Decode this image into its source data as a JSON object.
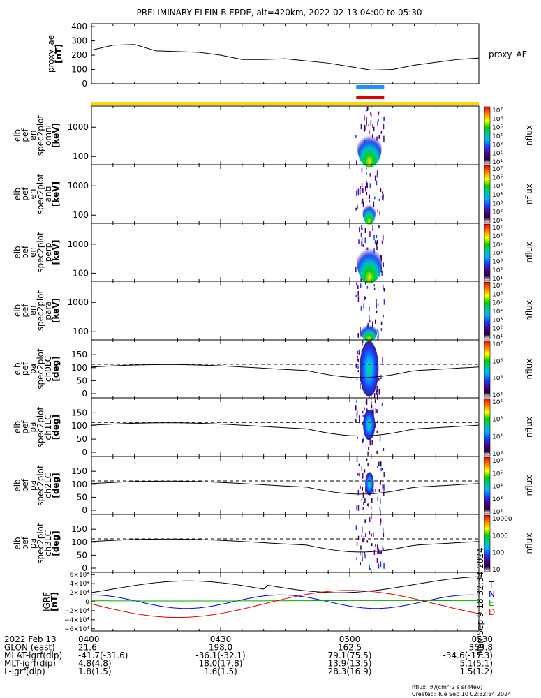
{
  "title": "PRELIMINARY ELFIN-B EPDE, alt=420km, 2022-02-13 04:00 to 05:30",
  "colors": {
    "bar_blue": "#1e90ff",
    "bar_red": "#e00000",
    "bar_yellow": "#ffd700",
    "bx": "#000000",
    "by": "#0000dd",
    "bz": "#00aa00",
    "bd": "#dd0000"
  },
  "chart_data": [
    {
      "type": "line",
      "panel": "proxy_ae",
      "ylabel_lines": [
        "proxy_ae",
        "[nT]"
      ],
      "legend": "proxy_AE",
      "yticks": [
        "400",
        "300",
        "200",
        "100",
        "0"
      ],
      "ylim": [
        0,
        420
      ],
      "x_minutes": [
        0,
        5,
        10,
        15,
        20,
        25,
        30,
        35,
        40,
        45,
        50,
        55,
        60,
        65,
        70,
        75,
        80,
        85,
        90
      ],
      "values": [
        235,
        270,
        275,
        230,
        225,
        220,
        200,
        170,
        170,
        175,
        160,
        145,
        120,
        95,
        100,
        130,
        150,
        170,
        180
      ]
    },
    {
      "type": "heatmap",
      "panel": "omni",
      "ylabel_lines": [
        "elb",
        "pef",
        "en",
        "spec2plot",
        "omni",
        "[keV]"
      ],
      "yticks": [
        "1000",
        "100"
      ],
      "cbar_label": "nflux",
      "cbar_ticks": [
        "10⁷",
        "10⁶",
        "10⁵",
        "10⁴",
        "10³",
        "10²",
        "10¹"
      ]
    },
    {
      "type": "heatmap",
      "panel": "anti",
      "ylabel_lines": [
        "elb",
        "pef",
        "en",
        "spec2plot",
        "anti",
        "[keV]"
      ],
      "yticks": [
        "1000",
        "100"
      ],
      "cbar_label": "nflux",
      "cbar_ticks": [
        "10⁷",
        "10⁶",
        "10⁵",
        "10⁴",
        "10³",
        "10²",
        "10¹"
      ]
    },
    {
      "type": "heatmap",
      "panel": "perp",
      "ylabel_lines": [
        "elb",
        "pef",
        "en",
        "spec2plot",
        "perp",
        "[keV]"
      ],
      "yticks": [
        "1000",
        "100"
      ],
      "cbar_label": "nflux",
      "cbar_ticks": [
        "10⁷",
        "10⁶",
        "10⁵",
        "10⁴",
        "10³",
        "10²",
        "10¹"
      ]
    },
    {
      "type": "heatmap",
      "panel": "para",
      "ylabel_lines": [
        "elb",
        "pef",
        "en",
        "spec2plot",
        "para",
        "[keV]"
      ],
      "yticks": [
        "1000",
        "100"
      ],
      "cbar_label": "nflux",
      "cbar_ticks": [
        "10⁷",
        "10⁶",
        "10⁵",
        "10⁴",
        "10³",
        "10²",
        "10¹"
      ]
    },
    {
      "type": "heatmap",
      "panel": "ch0LC",
      "ylabel_lines": [
        "elb",
        "pef",
        "pa",
        "spec2plot",
        "ch0LC",
        "[deg]"
      ],
      "yticks": [
        "150",
        "100",
        "50",
        "0"
      ],
      "cbar_label": "nflux",
      "cbar_ticks": [
        "10⁷",
        "10⁶",
        "10⁵",
        "10⁴"
      ]
    },
    {
      "type": "heatmap",
      "panel": "ch1LC",
      "ylabel_lines": [
        "elb",
        "pef",
        "pa",
        "spec2plot",
        "ch1LC",
        "[deg]"
      ],
      "yticks": [
        "150",
        "100",
        "50",
        "0"
      ],
      "cbar_label": "nflux",
      "cbar_ticks": [
        "10⁶",
        "10⁵",
        "10⁴",
        "10³"
      ]
    },
    {
      "type": "heatmap",
      "panel": "ch2LC",
      "ylabel_lines": [
        "elb",
        "pef",
        "pa",
        "spec2plot",
        "ch2LC",
        "[deg]"
      ],
      "yticks": [
        "150",
        "100",
        "50",
        "0"
      ],
      "cbar_label": "nflux",
      "cbar_ticks": [
        "10⁶",
        "10⁵",
        "10⁴",
        "10³",
        "10²"
      ]
    },
    {
      "type": "heatmap",
      "panel": "ch3LC",
      "ylabel_lines": [
        "elb",
        "pef",
        "pa",
        "spec2plot",
        "ch3LC",
        "[deg]"
      ],
      "yticks": [
        "150",
        "100",
        "50",
        "0"
      ],
      "cbar_label": "nflux",
      "cbar_ticks": [
        "10000",
        "1000",
        "100",
        "10"
      ]
    },
    {
      "type": "line",
      "panel": "igrf",
      "ylabel_lines": [
        "IGRF",
        "[nT]"
      ],
      "yticks": [
        "6×10⁴",
        "4×10⁴",
        "2×10⁴",
        "0",
        "−2×10⁴",
        "−4×10⁴",
        "−6×10⁴"
      ],
      "ylim": [
        -65000,
        65000
      ],
      "legend": [
        "T",
        "N",
        "E",
        "D"
      ],
      "side_note": "Mon Sep 9 18:32:34 2024"
    }
  ],
  "xaxis": {
    "tick_labels": [
      "0400",
      "0430",
      "0500",
      "0530"
    ],
    "rows": [
      {
        "label": "2022 Feb 13",
        "values": [
          "0400",
          "0430",
          "0500",
          "0530"
        ]
      },
      {
        "label": "GLON (east)",
        "values": [
          "21.6",
          "198.0",
          "162.5",
          "359.8"
        ]
      },
      {
        "label": "MLAT-igrf(dip)",
        "values": [
          "-41.7(-31.6)",
          "-36.1(-32.1)",
          "79.1(75.5)",
          "-34.6(-17.3)"
        ]
      },
      {
        "label": "MLT-igrf(dip)",
        "values": [
          "4.8(4.8)",
          "18.0(17.8)",
          "13.9(13.5)",
          "5.1(5.1)"
        ]
      },
      {
        "label": "L-igrf(dip)",
        "values": [
          "1.8(1.5)",
          "1.6(1.5)",
          "28.3(16.9)",
          "1.5(1.2)"
        ]
      }
    ]
  },
  "footer": {
    "units": "nflux: #/(cm^2 s sr MeV)",
    "created": "Created: Tue Sep 10 02:32:34 2024"
  }
}
